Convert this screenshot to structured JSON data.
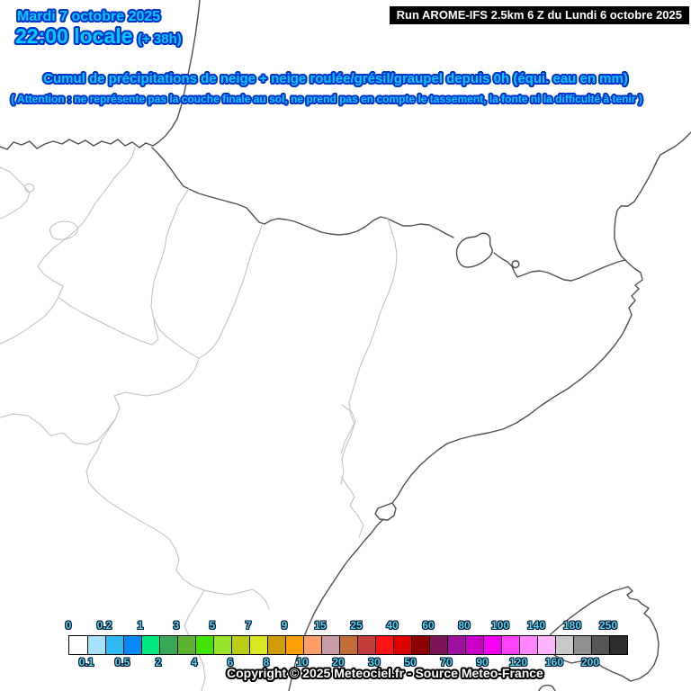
{
  "header": {
    "date": "Mardi 7 octobre 2025",
    "time": "22:00 locale",
    "forecast_offset": "(+ 38h)",
    "run_info": "Run AROME-IFS 2.5km 6 Z du Lundi 6 octobre 2025",
    "title": "Cumul de précipitations de neige + neige roulée/grésil/graupel depuis 0h (équi. eau en mm)",
    "warning": "( Attention : ne représente pas la couche finale au sol, ne prend pas en compte le tassement, la fonte ni la difficulté à tenir )",
    "text_color": "#00ccff",
    "outline_color": "#0033cc"
  },
  "map": {
    "background": "#ffffff",
    "coast_stroke": "#4f4f4f",
    "region_stroke": "#bebebe",
    "visible_areas": "Northern Spain, Pyrenees, Andorra, Catalonia coast, South-West France, Mallorca",
    "precipitation_overlay": "none (map entirely white, no snow accumulation shown)"
  },
  "legend": {
    "boundaries": [
      "0",
      "0.1",
      "0.2",
      "0.5",
      "1",
      "2",
      "3",
      "4",
      "5",
      "6",
      "7",
      "8",
      "9",
      "10",
      "15",
      "20",
      "25",
      "30",
      "40",
      "50",
      "60",
      "70",
      "80",
      "90",
      "100",
      "120",
      "140",
      "160",
      "180",
      "200",
      "250"
    ],
    "cell_colors": [
      "#ffffff",
      "#a6e1fb",
      "#2fb9f2",
      "#0887f7",
      "#00e97e",
      "#38a957",
      "#5cb32f",
      "#41e400",
      "#98e52c",
      "#bbcd16",
      "#d9e823",
      "#ce9c06",
      "#ff9e05",
      "#ff9e69",
      "#c79ca4",
      "#c56c3b",
      "#c43c3c",
      "#fe1212",
      "#de0000",
      "#8f0000",
      "#7d1458",
      "#a010a0",
      "#c800c8",
      "#f500f5",
      "#ff40ff",
      "#ff86ff",
      "#ffb4ff",
      "#c9c9c9",
      "#8f8f8f",
      "#565656",
      "#2d2d2d"
    ],
    "label_color": "#4fd8e8",
    "label_outline": "#02102e"
  },
  "footer": {
    "copyright": "Copyright © 2025 Meteociel.fr - Source Meteo-France"
  }
}
